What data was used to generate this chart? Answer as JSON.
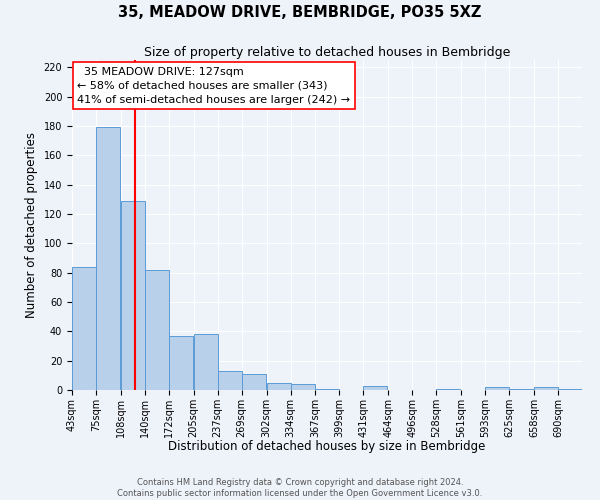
{
  "title": "35, MEADOW DRIVE, BEMBRIDGE, PO35 5XZ",
  "subtitle": "Size of property relative to detached houses in Bembridge",
  "xlabel": "Distribution of detached houses by size in Bembridge",
  "ylabel": "Number of detached properties",
  "bin_labels": [
    "43sqm",
    "75sqm",
    "108sqm",
    "140sqm",
    "172sqm",
    "205sqm",
    "237sqm",
    "269sqm",
    "302sqm",
    "334sqm",
    "367sqm",
    "399sqm",
    "431sqm",
    "464sqm",
    "496sqm",
    "528sqm",
    "561sqm",
    "593sqm",
    "625sqm",
    "658sqm",
    "690sqm"
  ],
  "bin_edges": [
    43,
    75,
    108,
    140,
    172,
    205,
    237,
    269,
    302,
    334,
    367,
    399,
    431,
    464,
    496,
    528,
    561,
    593,
    625,
    658,
    690
  ],
  "bar_heights": [
    84,
    179,
    129,
    82,
    37,
    38,
    13,
    11,
    5,
    4,
    1,
    0,
    3,
    0,
    0,
    1,
    0,
    2,
    1,
    2,
    1
  ],
  "bar_color": "#b8d0ea",
  "bar_edge_color": "#5b9bd5",
  "red_line_x": 127,
  "annotation_line1": "  35 MEADOW DRIVE: 127sqm",
  "annotation_line2": "← 58% of detached houses are smaller (343)",
  "annotation_line3": "41% of semi-detached houses are larger (242) →",
  "ylim": [
    0,
    225
  ],
  "yticks": [
    0,
    20,
    40,
    60,
    80,
    100,
    120,
    140,
    160,
    180,
    200,
    220
  ],
  "background_color": "#eef2f9",
  "grid_color": "#ffffff",
  "footer_line1": "Contains HM Land Registry data © Crown copyright and database right 2024.",
  "footer_line2": "Contains public sector information licensed under the Open Government Licence v3.0.",
  "title_fontsize": 10.5,
  "subtitle_fontsize": 9,
  "axis_label_fontsize": 8.5,
  "tick_fontsize": 7,
  "annotation_fontsize": 8,
  "footer_fontsize": 6
}
